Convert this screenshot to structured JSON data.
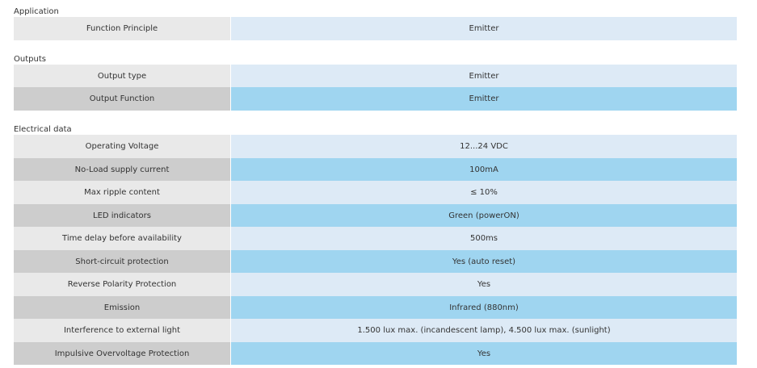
{
  "sections": [
    {
      "title": "Application",
      "rows": [
        {
          "label": "Function Principle",
          "value": "Emitter"
        }
      ]
    },
    {
      "title": "Outputs",
      "rows": [
        {
          "label": "Output type",
          "value": "Emitter"
        },
        {
          "label": "Output Function",
          "value": "Emitter"
        }
      ]
    },
    {
      "title": "Electrical data",
      "rows": [
        {
          "label": "Operating Voltage",
          "value": "12...24 VDC"
        },
        {
          "label": "No-Load supply current",
          "value": "100mA"
        },
        {
          "label": "Max ripple content",
          "value": "≤ 10%"
        },
        {
          "label": "LED indicators",
          "value": "Green (powerON)"
        },
        {
          "label": "Time delay before availability",
          "value": "500ms"
        },
        {
          "label": "Short-circuit protection",
          "value": "Yes (auto reset)"
        },
        {
          "label": "Reverse Polarity Protection",
          "value": "Yes"
        },
        {
          "label": "Emission",
          "value": "Infrared (880nm)"
        },
        {
          "label": "Interference to external light",
          "value": "1.500 lux max. (incandescent lamp), 4.500 lux max. (sunlight)"
        },
        {
          "label": "Impulsive Overvoltage Protection",
          "value": "Yes"
        }
      ]
    }
  ],
  "colors": {
    "label_light": "#e9e9e9",
    "label_dark": "#cdcdcd",
    "value_light": "#ddeaf6",
    "value_dark": "#9fd5f0",
    "text": "#333333"
  }
}
